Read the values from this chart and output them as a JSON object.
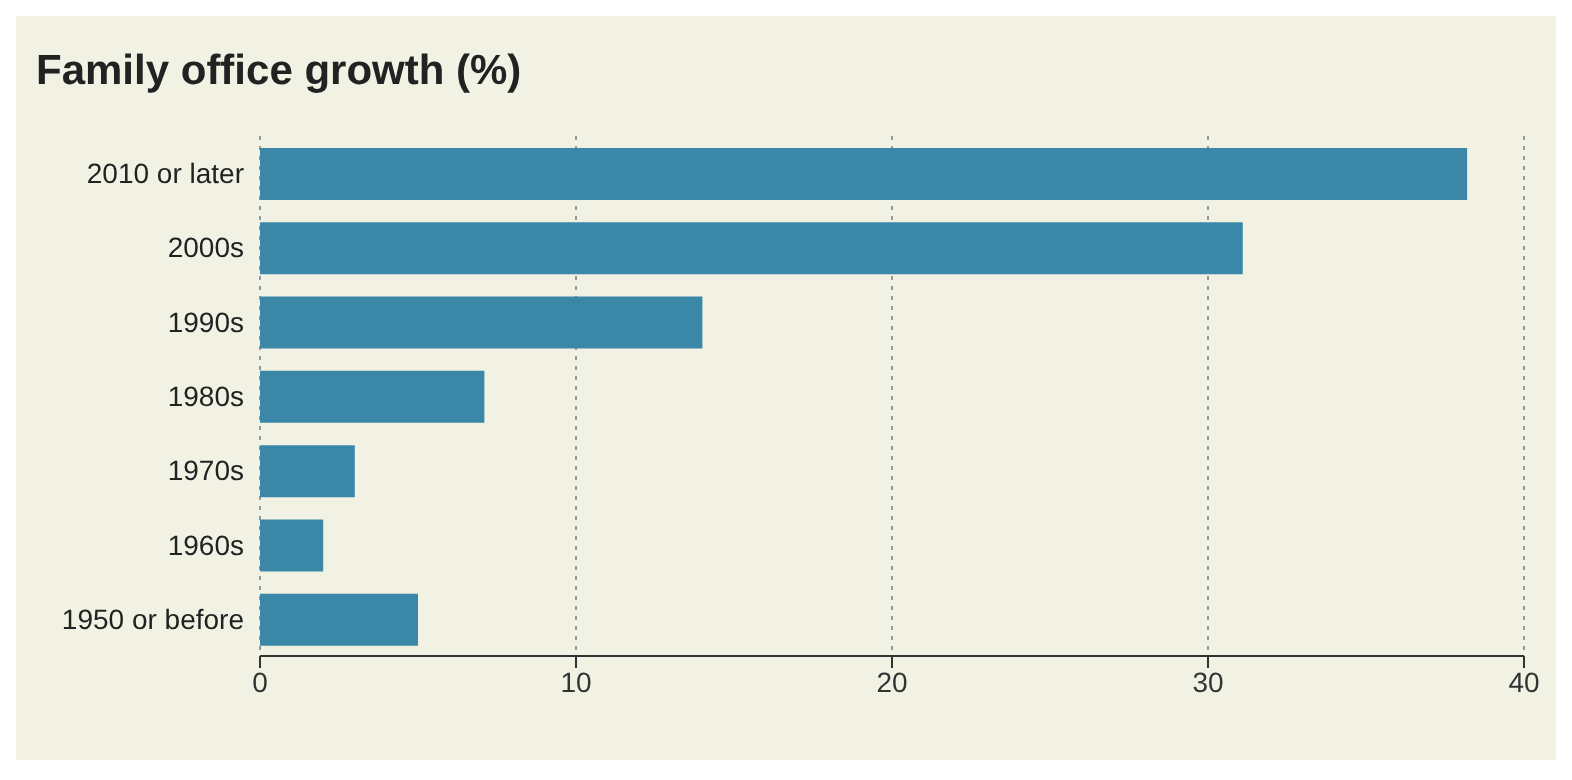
{
  "chart_data": {
    "type": "bar",
    "orientation": "horizontal",
    "title": "Family office growth (%)",
    "categories": [
      "2010 or later",
      "2000s",
      "1990s",
      "1980s",
      "1970s",
      "1960s",
      "1950 or before"
    ],
    "values": [
      38.2,
      31.1,
      14,
      7.1,
      3,
      2,
      5
    ],
    "color": "#3a87a8",
    "xlim": [
      0,
      40
    ],
    "xticks": [
      0,
      10,
      20,
      30,
      40
    ],
    "grid": "x"
  }
}
